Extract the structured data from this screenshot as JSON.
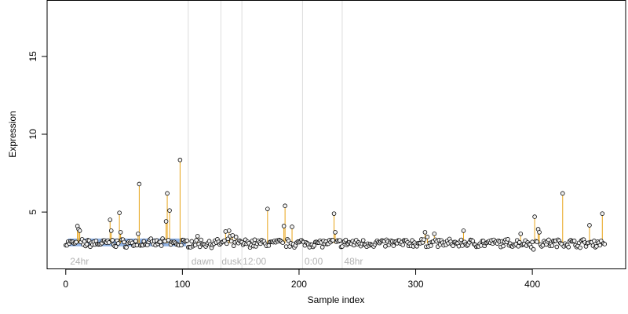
{
  "chart_data": {
    "type": "scatter",
    "title": "",
    "xlabel": "Sample index",
    "ylabel": "Expression",
    "xlim": [
      -16,
      480
    ],
    "ylim": [
      1.35,
      18.6
    ],
    "x_ticks": [
      0,
      100,
      200,
      300,
      400
    ],
    "y_ticks": [
      5,
      10,
      15
    ],
    "grid": false,
    "legend": "none",
    "baseline": 3.0,
    "colors": {
      "points_fill": "#f3f3f3",
      "points_stroke": "#000000",
      "spike": "#e8a317",
      "region_line": "#dcdcdc",
      "region_label": "#b3b3b3",
      "highlight_bar": "#7ea6e0"
    },
    "region_boundaries": [
      105,
      133,
      151,
      203,
      237
    ],
    "region_labels": [
      {
        "x": 3,
        "text": "24hr"
      },
      {
        "x": 107,
        "text": "dawn"
      },
      {
        "x": 133,
        "text": "dusk"
      },
      {
        "x": 151,
        "text": "12:00"
      },
      {
        "x": 204,
        "text": "0:00"
      },
      {
        "x": 238,
        "text": "48hr"
      }
    ],
    "highlight_band": {
      "x_start": 2,
      "x_end": 103,
      "y_low": 2.8,
      "y_high": 3.3
    },
    "spikes": [
      {
        "x": 10,
        "y": 4.1
      },
      {
        "x": 11,
        "y": 3.9
      },
      {
        "x": 12,
        "y": 3.8
      },
      {
        "x": 38,
        "y": 4.5
      },
      {
        "x": 39,
        "y": 3.8
      },
      {
        "x": 46,
        "y": 4.95
      },
      {
        "x": 47,
        "y": 3.7
      },
      {
        "x": 63,
        "y": 6.8
      },
      {
        "x": 62,
        "y": 3.6
      },
      {
        "x": 86,
        "y": 4.4
      },
      {
        "x": 87,
        "y": 6.2
      },
      {
        "x": 89,
        "y": 5.1
      },
      {
        "x": 98,
        "y": 8.35
      },
      {
        "x": 113,
        "y": 3.45
      },
      {
        "x": 137,
        "y": 3.75
      },
      {
        "x": 140,
        "y": 3.8
      },
      {
        "x": 141,
        "y": 3.45
      },
      {
        "x": 143,
        "y": 3.5
      },
      {
        "x": 146,
        "y": 3.4
      },
      {
        "x": 173,
        "y": 5.2
      },
      {
        "x": 187,
        "y": 4.1
      },
      {
        "x": 188,
        "y": 5.4
      },
      {
        "x": 194,
        "y": 4.05
      },
      {
        "x": 230,
        "y": 4.9
      },
      {
        "x": 231,
        "y": 3.7
      },
      {
        "x": 308,
        "y": 3.7
      },
      {
        "x": 310,
        "y": 3.4
      },
      {
        "x": 316,
        "y": 3.6
      },
      {
        "x": 341,
        "y": 3.8
      },
      {
        "x": 390,
        "y": 3.6
      },
      {
        "x": 402,
        "y": 4.7
      },
      {
        "x": 405,
        "y": 3.9
      },
      {
        "x": 406,
        "y": 3.7
      },
      {
        "x": 426,
        "y": 6.2
      },
      {
        "x": 449,
        "y": 4.15
      },
      {
        "x": 460,
        "y": 4.9
      }
    ]
  }
}
